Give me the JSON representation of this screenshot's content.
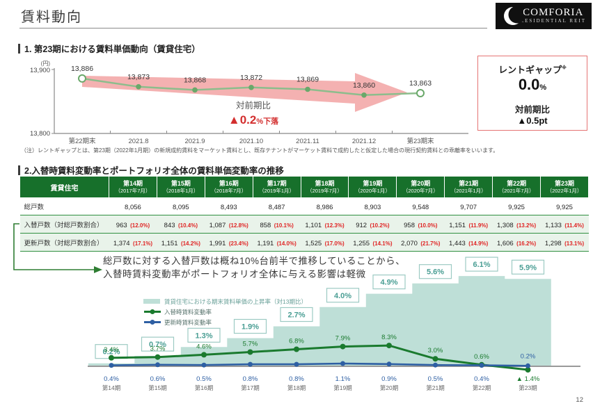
{
  "page": {
    "title": "賃料動向",
    "page_number": "12"
  },
  "logo": {
    "name": "COMFORIA",
    "sub": "RESIDENTIAL REIT"
  },
  "section1": {
    "heading": "1. 第23期における賃料単価動向（賃貸住宅）",
    "annotation": {
      "label": "対前期比",
      "value": "▲0.2",
      "suffix": "%下落"
    },
    "rent_gap_box": {
      "title": "レントギャップ",
      "sup": "※",
      "value": "0.0",
      "unit": "%",
      "sub_label": "対前期比",
      "sub_value": "▲0.5pt"
    },
    "note": "（注）レントギャップとは、第23期（2022年1月期）の新規成約賃料をマーケット賃料とし、既存テナントがマーケット賃料で成約したと仮定した場合の現行契約賃料との乖離率をいいます。"
  },
  "section2": {
    "heading": "2.入替時賃料変動率とポートフォリオ全体の賃料単価変動率の推移",
    "table": {
      "corner": "賃貸住宅",
      "periods": [
        {
          "period": "第14期",
          "date": "（2017年7月）"
        },
        {
          "period": "第15期",
          "date": "（2018年1月）"
        },
        {
          "period": "第16期",
          "date": "（2018年7月）"
        },
        {
          "period": "第17期",
          "date": "（2019年1月）"
        },
        {
          "period": "第18期",
          "date": "（2019年7月）"
        },
        {
          "period": "第19期",
          "date": "（2020年1月）"
        },
        {
          "period": "第20期",
          "date": "（2020年7月）"
        },
        {
          "period": "第21期",
          "date": "（2021年1月）"
        },
        {
          "period": "第22期",
          "date": "（2021年7月）"
        },
        {
          "period": "第23期",
          "date": "（2022年1月）"
        }
      ],
      "rows": [
        {
          "label": "総戸数",
          "values": [
            "8,056",
            "8,095",
            "8,493",
            "8,487",
            "8,986",
            "8,903",
            "9,548",
            "9,707",
            "9,925",
            "9,925"
          ]
        },
        {
          "label": "入替戸数（対総戸数割合）",
          "cells": [
            {
              "n": "963",
              "p": "(12.0%)"
            },
            {
              "n": "843",
              "p": "(10.4%)"
            },
            {
              "n": "1,087",
              "p": "(12.8%)"
            },
            {
              "n": "858",
              "p": "(10.1%)"
            },
            {
              "n": "1,101",
              "p": "(12.3%)"
            },
            {
              "n": "912",
              "p": "(10.2%)"
            },
            {
              "n": "958",
              "p": "(10.0%)"
            },
            {
              "n": "1,151",
              "p": "(11.9%)"
            },
            {
              "n": "1,308",
              "p": "(13.2%)"
            },
            {
              "n": "1,133",
              "p": "(11.4%)"
            }
          ]
        },
        {
          "label": "更新戸数（対総戸数割合）",
          "cells": [
            {
              "n": "1,374",
              "p": "(17.1%)"
            },
            {
              "n": "1,151",
              "p": "(14.2%)"
            },
            {
              "n": "1,991",
              "p": "(23.4%)"
            },
            {
              "n": "1,191",
              "p": "(14.0%)"
            },
            {
              "n": "1,525",
              "p": "(17.0%)"
            },
            {
              "n": "1,255",
              "p": "(14.1%)"
            },
            {
              "n": "2,070",
              "p": "(21.7%)"
            },
            {
              "n": "1,443",
              "p": "(14.9%)"
            },
            {
              "n": "1,606",
              "p": "(16.2%)"
            },
            {
              "n": "1,298",
              "p": "(13.1%)"
            }
          ]
        }
      ]
    },
    "callout_line1": "総戸数に対する入替戸数は概ね10%台前半で推移していることから、",
    "callout_line2": "入替時賃料変動率がポートフォリオ全体に与える影響は軽微"
  },
  "chart_data": [
    {
      "type": "line",
      "title": "第23期における賃料単価動向（賃貸住宅）",
      "unit": "(円)",
      "categories": [
        "第22期末",
        "2021.8",
        "2021.9",
        "2021.10",
        "2021.11",
        "2021.12",
        "第23期末"
      ],
      "values": [
        13886,
        13873,
        13868,
        13872,
        13869,
        13860,
        13863
      ],
      "labels": [
        "13,886",
        "13,873",
        "13,868",
        "13,872",
        "13,869",
        "13,860",
        "13,863"
      ],
      "ylim": [
        13800,
        13900
      ],
      "ytick_labels": [
        "13,900",
        "13,800"
      ]
    },
    {
      "type": "area",
      "categories": [
        "第14期",
        "第15期",
        "第16期",
        "第17期",
        "第18期",
        "第19期",
        "第20期",
        "第21期",
        "第22期",
        "第23期"
      ],
      "series": [
        {
          "name": "賃貸住宅における期末賃料単価の上昇率（対13期比）",
          "render": "step-area",
          "values": [
            0.2,
            0.7,
            1.3,
            1.9,
            2.7,
            4.0,
            4.9,
            5.6,
            6.1,
            5.9
          ],
          "labels": [
            "0.2%",
            "0.7%",
            "1.3%",
            "1.9%",
            "2.7%",
            "4.0%",
            "4.9%",
            "5.6%",
            "6.1%",
            "5.9%"
          ]
        },
        {
          "name": "入替時賃料変動率",
          "render": "line",
          "values": [
            3.4,
            3.7,
            4.6,
            5.7,
            6.8,
            7.9,
            8.3,
            3.0,
            0.6,
            -1.4
          ],
          "labels": [
            "3.4%",
            "3.7%",
            "4.6%",
            "5.7%",
            "6.8%",
            "7.9%",
            "8.3%",
            "3.0%",
            "0.6%",
            "▲ 1.4%"
          ]
        },
        {
          "name": "更新時賃料変動率",
          "render": "line",
          "values": [
            0.4,
            0.6,
            0.5,
            0.8,
            0.8,
            1.1,
            0.9,
            0.5,
            0.4,
            0.2
          ],
          "labels": [
            "0.4%",
            "0.6%",
            "0.5%",
            "0.8%",
            "0.8%",
            "1.1%",
            "0.9%",
            "0.5%",
            "0.4%",
            "0.2%"
          ]
        }
      ]
    }
  ],
  "colors": {
    "header_green": "#17702b",
    "row_light_green": "#e9f3ea",
    "grid_green": "#2f8f3f",
    "pct_red": "#e02424",
    "annotation_red": "#d32f2f",
    "gap_border_red": "#e57373",
    "teal_area": "#bedfd7",
    "teal_text": "#4a9e94",
    "teal_border": "#9ccac3",
    "green_line": "#1a7a2e",
    "blue_line": "#2e5fa3",
    "chart1_line": "#8cbd8c",
    "chart1_dot": "#6aa86a",
    "pink_arrow": "#f2a3a3",
    "axis_gray": "#888"
  }
}
